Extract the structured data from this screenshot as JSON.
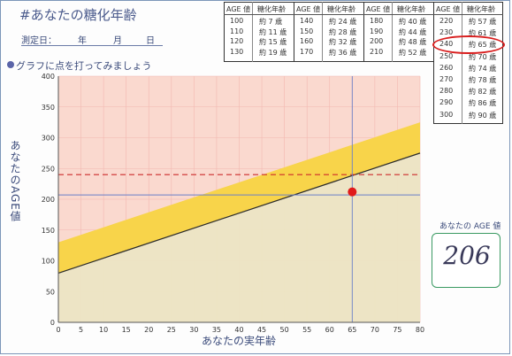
{
  "header": {
    "title": "#あなたの糖化年齢",
    "date_label": "測定日：",
    "date_year": "年",
    "date_month": "月",
    "date_day": "日",
    "prompt": "グラフに点を打ってみましょう"
  },
  "age_table": {
    "col_header_age": "AGE 値",
    "col_header_glyc": "糖化年齢",
    "columns": [
      {
        "rows": [
          [
            "100",
            "約 7 歳"
          ],
          [
            "110",
            "約 11 歳"
          ],
          [
            "120",
            "約 15 歳"
          ],
          [
            "130",
            "約 19 歳"
          ]
        ]
      },
      {
        "rows": [
          [
            "140",
            "約 24 歳"
          ],
          [
            "150",
            "約 28 歳"
          ],
          [
            "160",
            "約 32 歳"
          ],
          [
            "170",
            "約 36 歳"
          ]
        ]
      },
      {
        "rows": [
          [
            "180",
            "約 40 歳"
          ],
          [
            "190",
            "約 44 歳"
          ],
          [
            "200",
            "約 48 歳"
          ],
          [
            "210",
            "約 52 歳"
          ]
        ]
      },
      {
        "rows": [
          [
            "220",
            "約 57 歳"
          ],
          [
            "230",
            "約 61 歳"
          ],
          [
            "240",
            "約 65 歳"
          ],
          [
            "250",
            "約 70 歳"
          ],
          [
            "260",
            "約 74 歳"
          ],
          [
            "270",
            "約 78 歳"
          ],
          [
            "280",
            "約 82 歳"
          ],
          [
            "290",
            "約 86 歳"
          ],
          [
            "300",
            "約 90 歳"
          ]
        ]
      }
    ],
    "highlighted_age": "240"
  },
  "age_value": {
    "label": "あなたの AGE 値",
    "handwritten": "206"
  },
  "chart_data": {
    "type": "line",
    "xlabel": "あなたの実年齢",
    "ylabel": "あなたのAGE値",
    "xlim": [
      0,
      80
    ],
    "ylim": [
      0,
      400
    ],
    "x_ticks": [
      0,
      5,
      10,
      15,
      20,
      25,
      30,
      35,
      40,
      45,
      50,
      55,
      60,
      65,
      70,
      75,
      80
    ],
    "y_ticks": [
      0,
      50,
      100,
      150,
      200,
      250,
      300,
      350,
      400
    ],
    "grid": true,
    "reference_line": {
      "x": [
        0,
        80
      ],
      "y": [
        80,
        275
      ]
    },
    "upper_band": {
      "x": [
        0,
        80
      ],
      "y_low": [
        80,
        275
      ],
      "y_high": [
        130,
        325
      ]
    },
    "dashed_line_y": 240,
    "crosshair": {
      "x": 65,
      "y": 207
    },
    "point": {
      "x": 65,
      "y": 212
    },
    "colors": {
      "background": "#fad9cf",
      "band": "#f8d44a",
      "lower_area": "#ece5c4",
      "reference_line": "#2b2b2b",
      "dashed": "#cc2b2b",
      "crosshair": "#6b80c8",
      "point": "#e01a1a",
      "grid": "#f2b8b0"
    }
  }
}
